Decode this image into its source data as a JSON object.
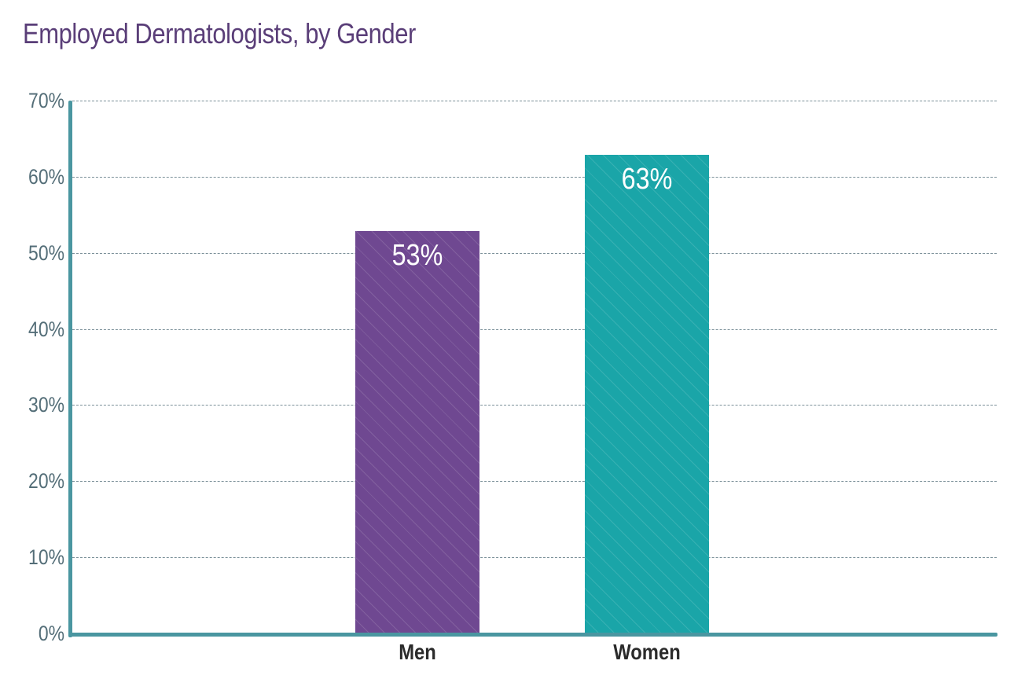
{
  "chart_data": {
    "type": "bar",
    "title": "Employed Dermatologists, by Gender",
    "categories": [
      "Men",
      "Women"
    ],
    "values": [
      53,
      63
    ],
    "value_labels": [
      "53%",
      "63%"
    ],
    "colors": [
      "#6f4891",
      "#1aa5a8"
    ],
    "xlabel": "",
    "ylabel": "",
    "ylim": [
      0,
      70
    ],
    "yticks": [
      0,
      10,
      20,
      30,
      40,
      50,
      60,
      70
    ],
    "ytick_labels": [
      "0%",
      "10%",
      "20%",
      "30%",
      "40%",
      "50%",
      "60%",
      "70%"
    ],
    "grid": true,
    "grid_style": "dashed",
    "legend": null
  },
  "title": "Employed Dermatologists, by Gender",
  "axis": {
    "color": "#4a96a0",
    "grid_color": "#7b9099",
    "tick_color": "#546e78"
  }
}
